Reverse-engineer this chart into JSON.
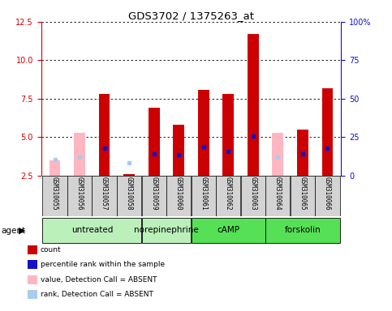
{
  "title": "GDS3702 / 1375263_at",
  "samples": [
    "GSM310055",
    "GSM310056",
    "GSM310057",
    "GSM310058",
    "GSM310059",
    "GSM310060",
    "GSM310061",
    "GSM310062",
    "GSM310063",
    "GSM310064",
    "GSM310065",
    "GSM310066"
  ],
  "red_bars": [
    null,
    null,
    7.8,
    2.6,
    6.9,
    5.8,
    8.1,
    7.8,
    11.7,
    null,
    5.5,
    8.2
  ],
  "pink_bars": [
    3.5,
    5.3,
    null,
    null,
    null,
    null,
    null,
    null,
    null,
    5.3,
    null,
    null
  ],
  "blue_markers": [
    null,
    null,
    4.3,
    null,
    3.9,
    3.85,
    4.4,
    4.1,
    5.1,
    null,
    3.9,
    4.3
  ],
  "lblue_markers": [
    3.55,
    3.7,
    null,
    3.35,
    null,
    null,
    null,
    null,
    null,
    3.7,
    null,
    null
  ],
  "ylim_left": [
    2.5,
    12.5
  ],
  "ylim_right": [
    0,
    100
  ],
  "yticks_left": [
    2.5,
    5.0,
    7.5,
    10.0,
    12.5
  ],
  "yticks_right": [
    0,
    25,
    50,
    75,
    100
  ],
  "ytick_labels_right": [
    "0",
    "25",
    "50",
    "75",
    "100%"
  ],
  "bar_width": 0.45,
  "red_color": "#cc0000",
  "pink_color": "#ffb6c1",
  "blue_color": "#1111cc",
  "lblue_color": "#aaccee",
  "left_ax_color": "#cc0000",
  "right_ax_color": "#1111cc",
  "sample_box_color": "#d3d3d3",
  "agent_groups": [
    {
      "label": "untreated",
      "start": 0,
      "end": 3,
      "color": "#bbf0bb"
    },
    {
      "label": "norepinephrine",
      "start": 4,
      "end": 5,
      "color": "#bbf0bb"
    },
    {
      "label": "cAMP",
      "start": 6,
      "end": 8,
      "color": "#55e055"
    },
    {
      "label": "forskolin",
      "start": 9,
      "end": 11,
      "color": "#55e055"
    }
  ],
  "legend_items": [
    {
      "color": "#cc0000",
      "label": "count"
    },
    {
      "color": "#1111cc",
      "label": "percentile rank within the sample"
    },
    {
      "color": "#ffb6c1",
      "label": "value, Detection Call = ABSENT"
    },
    {
      "color": "#aaccee",
      "label": "rank, Detection Call = ABSENT"
    }
  ]
}
